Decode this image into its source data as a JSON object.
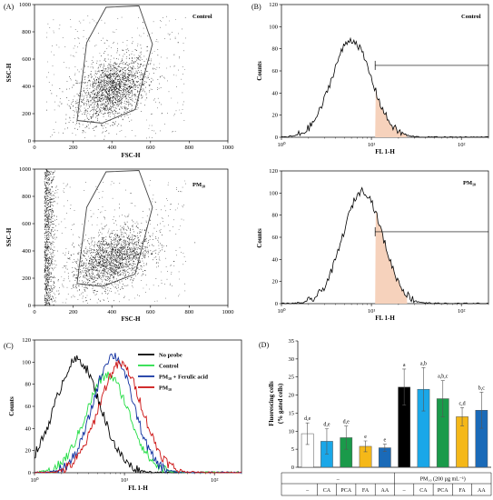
{
  "chart_data": [
    {
      "panel": "(A)",
      "type": "scatter",
      "annotation": "Control",
      "xlabel": "FSC-H",
      "ylabel": "SSC-H",
      "xlim": [
        0,
        1000
      ],
      "ylim": [
        0,
        1000
      ],
      "xticks": [
        "0",
        "200",
        "400",
        "600",
        "800",
        "1000"
      ],
      "yticks": [
        "0",
        "200",
        "400",
        "600",
        "800",
        "1000"
      ],
      "gate": [
        [
          220,
          150
        ],
        [
          270,
          720
        ],
        [
          370,
          980
        ],
        [
          540,
          990
        ],
        [
          610,
          710
        ],
        [
          520,
          230
        ],
        [
          350,
          130
        ],
        [
          220,
          150
        ]
      ],
      "cloud": {
        "center": [
          400,
          380
        ],
        "spread": [
          90,
          110
        ],
        "count": 1800
      }
    },
    {
      "panel": "(B)",
      "type": "line",
      "annotation": "Control",
      "xlabel": "FL 1-H",
      "ylabel": "Counts",
      "xscale": "log",
      "xlim": [
        1,
        200
      ],
      "ylim": [
        0,
        120
      ],
      "xticks": [
        "10⁰",
        "10¹",
        "10²"
      ],
      "yticks": [
        "0",
        "20",
        "40",
        "60",
        "80",
        "100",
        "120"
      ],
      "peak": {
        "x": 6,
        "y": 88
      },
      "marker": {
        "x": 11,
        "y": 65
      }
    },
    {
      "panel": "",
      "type": "scatter",
      "annotation": "PM₁₀",
      "xlabel": "FSC-H",
      "ylabel": "SSC-H",
      "xlim": [
        0,
        1000
      ],
      "ylim": [
        0,
        1000
      ],
      "xticks": [
        "0",
        "200",
        "400",
        "600",
        "800",
        "1000"
      ],
      "yticks": [
        "0",
        "200",
        "400",
        "600",
        "800",
        "1000"
      ],
      "gate": [
        [
          220,
          160
        ],
        [
          270,
          720
        ],
        [
          370,
          980
        ],
        [
          540,
          990
        ],
        [
          610,
          720
        ],
        [
          520,
          230
        ],
        [
          350,
          140
        ],
        [
          220,
          160
        ]
      ],
      "cloud": {
        "center": [
          400,
          340
        ],
        "spread": [
          100,
          100
        ],
        "count": 1800
      },
      "stripe": true
    },
    {
      "panel": "",
      "type": "line",
      "annotation": "PM₁₀",
      "xlabel": "FL 1-H",
      "ylabel": "Counts",
      "xscale": "log",
      "xlim": [
        1,
        200
      ],
      "ylim": [
        0,
        120
      ],
      "xticks": [
        "10⁰",
        "10¹",
        "10²"
      ],
      "yticks": [
        "0",
        "20",
        "40",
        "60",
        "80",
        "100",
        "120"
      ],
      "peak": {
        "x": 8,
        "y": 102
      },
      "marker": {
        "x": 11,
        "y": 65
      }
    },
    {
      "panel": "(C)",
      "type": "line",
      "xlabel": "FL 1-H",
      "ylabel": "Counts",
      "xscale": "log",
      "xlim": [
        1,
        200
      ],
      "ylim": [
        0,
        120
      ],
      "xticks": [
        "10⁰",
        "10¹",
        "10²"
      ],
      "yticks": [
        "0",
        "20",
        "40",
        "60",
        "80",
        "100",
        "120"
      ],
      "series": [
        {
          "name": "No probe",
          "color": "#000000",
          "peak": 3,
          "height": 102,
          "width": 0.25
        },
        {
          "name": "Control",
          "color": "#22dd44",
          "peak": 6.5,
          "height": 88,
          "width": 0.24
        },
        {
          "name": "PM₁₀ + Ferulic acid",
          "color": "#1030a0",
          "peak": 7.5,
          "height": 106,
          "width": 0.22
        },
        {
          "name": "PM₁₀",
          "color": "#cc1010",
          "peak": 9,
          "height": 98,
          "width": 0.24
        }
      ]
    },
    {
      "panel": "(D)",
      "type": "bar",
      "ylabel": "Fluorescing cells",
      "ylabel2": "(% gated cells)",
      "ylim": [
        0,
        35
      ],
      "yticks": [
        "0",
        "5",
        "10",
        "15",
        "20",
        "25",
        "30",
        "35"
      ],
      "categories": [
        "–",
        "CA",
        "PCA",
        "FA",
        "AA",
        "–",
        "CA",
        "PCA",
        "FA",
        "AA"
      ],
      "values": [
        9.3,
        7.2,
        8.2,
        5.8,
        5.4,
        22.2,
        21.6,
        19.0,
        14.0,
        15.8
      ],
      "errors": [
        3.0,
        3.5,
        3.2,
        1.5,
        1.0,
        5.0,
        6.0,
        5.0,
        2.5,
        5.0
      ],
      "letters": [
        "d,e",
        "d,e",
        "d,e",
        "e",
        "e",
        "a",
        "a,b",
        "a,b,c",
        "c,d",
        "b,c"
      ],
      "colors": [
        "#ffffff",
        "#1aa7e8",
        "#1a9a4a",
        "#f5b818",
        "#1a6ab8",
        "#000000",
        "#1aa7e8",
        "#1a9a4a",
        "#f5b818",
        "#1a6ab8"
      ],
      "group_labels": [
        "–",
        "PM₁₀ (200 µg mL⁻¹)"
      ]
    }
  ]
}
